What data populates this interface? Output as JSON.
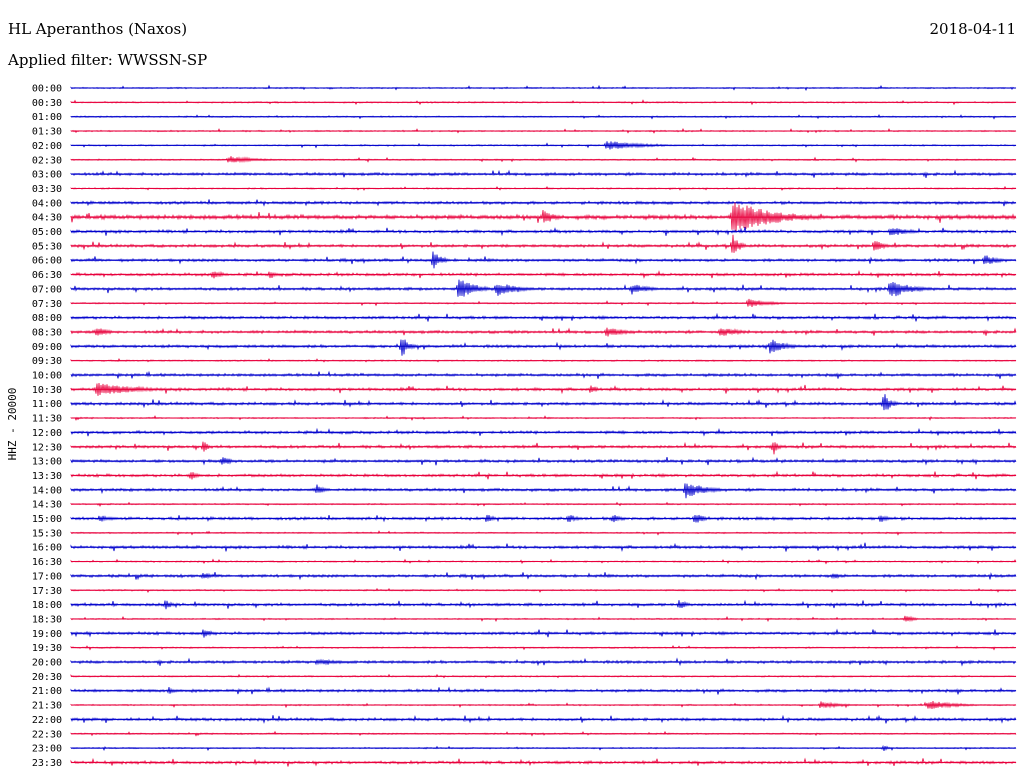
{
  "header": {
    "station": "HL Aperanthos (Naxos)",
    "date": "2018-04-11",
    "filter_label": "Applied filter: WWSSN-SP"
  },
  "chart_data": {
    "type": "helicorder",
    "ylabel": "HHZ - 20000",
    "colors": {
      "even_row": "#0000cc",
      "odd_row": "#e8003c"
    },
    "row_labels": [
      "00:00",
      "00:30",
      "01:00",
      "01:30",
      "02:00",
      "02:30",
      "03:00",
      "03:30",
      "04:00",
      "04:30",
      "05:00",
      "05:30",
      "06:00",
      "06:30",
      "07:00",
      "07:30",
      "08:00",
      "08:30",
      "09:00",
      "09:30",
      "10:00",
      "10:30",
      "11:00",
      "11:30",
      "12:00",
      "12:30",
      "13:00",
      "13:30",
      "14:00",
      "14:30",
      "15:00",
      "15:30",
      "16:00",
      "16:30",
      "17:00",
      "17:30",
      "18:00",
      "18:30",
      "19:00",
      "19:30",
      "20:00",
      "20:30",
      "21:00",
      "21:30",
      "22:00",
      "22:30",
      "23:00",
      "23:30"
    ],
    "noise_level": [
      1,
      1,
      1,
      1,
      1,
      1,
      2,
      1,
      2,
      3,
      2,
      2,
      2,
      2,
      2,
      1,
      2,
      2,
      2,
      1,
      2,
      2,
      2,
      1,
      2,
      2,
      2,
      2,
      2,
      1,
      2,
      1,
      2,
      1,
      2,
      1,
      2,
      1,
      2,
      1,
      2,
      1,
      2,
      1,
      2,
      1,
      1,
      2
    ],
    "events": [
      {
        "row": 4,
        "minute": 17,
        "amp": 5,
        "dur": 2.5
      },
      {
        "row": 5,
        "minute": 5,
        "amp": 4,
        "dur": 2
      },
      {
        "row": 9,
        "minute": 15,
        "amp": 9,
        "dur": 0.8
      },
      {
        "row": 9,
        "minute": 21,
        "amp": 18,
        "dur": 3.0
      },
      {
        "row": 10,
        "minute": 26,
        "amp": 5,
        "dur": 1.5
      },
      {
        "row": 11,
        "minute": 21,
        "amp": 12,
        "dur": 0.5
      },
      {
        "row": 11,
        "minute": 25.5,
        "amp": 8,
        "dur": 0.6
      },
      {
        "row": 12,
        "minute": 11.5,
        "amp": 10,
        "dur": 0.6
      },
      {
        "row": 12,
        "minute": 29,
        "amp": 6,
        "dur": 1.0
      },
      {
        "row": 13,
        "minute": 4.5,
        "amp": 5,
        "dur": 0.8
      },
      {
        "row": 13,
        "minute": 6.3,
        "amp": 5,
        "dur": 0.6
      },
      {
        "row": 14,
        "minute": 12.3,
        "amp": 12,
        "dur": 1.2
      },
      {
        "row": 14,
        "minute": 13.5,
        "amp": 8,
        "dur": 1.5
      },
      {
        "row": 14,
        "minute": 17.8,
        "amp": 6,
        "dur": 1.2
      },
      {
        "row": 14,
        "minute": 26,
        "amp": 10,
        "dur": 1.5
      },
      {
        "row": 15,
        "minute": 21.5,
        "amp": 5,
        "dur": 1.5
      },
      {
        "row": 17,
        "minute": 0.8,
        "amp": 6,
        "dur": 0.8
      },
      {
        "row": 17,
        "minute": 17,
        "amp": 5,
        "dur": 1.5
      },
      {
        "row": 17,
        "minute": 20.6,
        "amp": 5,
        "dur": 1.5
      },
      {
        "row": 18,
        "minute": 10.5,
        "amp": 12,
        "dur": 0.5
      },
      {
        "row": 18,
        "minute": 22.2,
        "amp": 8,
        "dur": 1.2
      },
      {
        "row": 21,
        "minute": 0.8,
        "amp": 7,
        "dur": 3.0
      },
      {
        "row": 21,
        "minute": 16.5,
        "amp": 5,
        "dur": 0.5
      },
      {
        "row": 22,
        "minute": 25.8,
        "amp": 12,
        "dur": 0.5
      },
      {
        "row": 25,
        "minute": 4.2,
        "amp": 8,
        "dur": 0.3
      },
      {
        "row": 25,
        "minute": 22.3,
        "amp": 10,
        "dur": 0.3
      },
      {
        "row": 26,
        "minute": 4.8,
        "amp": 6,
        "dur": 0.6
      },
      {
        "row": 27,
        "minute": 3.8,
        "amp": 5,
        "dur": 0.6
      },
      {
        "row": 28,
        "minute": 7.8,
        "amp": 6,
        "dur": 0.5
      },
      {
        "row": 28,
        "minute": 19.5,
        "amp": 9,
        "dur": 1.5
      },
      {
        "row": 30,
        "minute": 0.9,
        "amp": 4,
        "dur": 0.8
      },
      {
        "row": 30,
        "minute": 13.2,
        "amp": 5,
        "dur": 0.5
      },
      {
        "row": 30,
        "minute": 15.8,
        "amp": 5,
        "dur": 0.6
      },
      {
        "row": 30,
        "minute": 17.2,
        "amp": 5,
        "dur": 0.6
      },
      {
        "row": 30,
        "minute": 19.8,
        "amp": 6,
        "dur": 0.7
      },
      {
        "row": 30,
        "minute": 25.7,
        "amp": 5,
        "dur": 0.6
      },
      {
        "row": 34,
        "minute": 4.2,
        "amp": 4,
        "dur": 0.6
      },
      {
        "row": 34,
        "minute": 24.2,
        "amp": 4,
        "dur": 0.6
      },
      {
        "row": 36,
        "minute": 3.0,
        "amp": 5,
        "dur": 0.5
      },
      {
        "row": 36,
        "minute": 19.3,
        "amp": 5,
        "dur": 0.6
      },
      {
        "row": 37,
        "minute": 26.5,
        "amp": 5,
        "dur": 0.5
      },
      {
        "row": 38,
        "minute": 4.2,
        "amp": 5,
        "dur": 0.6
      },
      {
        "row": 40,
        "minute": 7.8,
        "amp": 3,
        "dur": 2.0
      },
      {
        "row": 42,
        "minute": 3.1,
        "amp": 4,
        "dur": 0.5
      },
      {
        "row": 43,
        "minute": 23.8,
        "amp": 4,
        "dur": 1.5
      },
      {
        "row": 43,
        "minute": 27.2,
        "amp": 5,
        "dur": 2.0
      },
      {
        "row": 46,
        "minute": 25.8,
        "amp": 4,
        "dur": 0.3
      }
    ]
  }
}
